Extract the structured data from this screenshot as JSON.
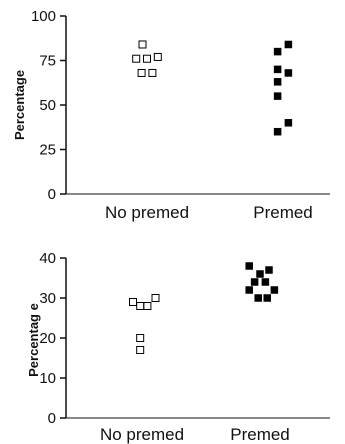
{
  "chart_data": [
    {
      "type": "scatter",
      "ylabel": "Percentage",
      "ylim": [
        0,
        100
      ],
      "yticks": [
        "0",
        "25",
        "50",
        "75",
        "100"
      ],
      "categories": [
        "No premed",
        "Premed"
      ],
      "series": [
        {
          "category": "No premed",
          "marker": "open-square",
          "points": [
            [
              -0.5,
              84
            ],
            [
              -1.2,
              76
            ],
            [
              0.0,
              76
            ],
            [
              1.2,
              77
            ],
            [
              -0.6,
              68
            ],
            [
              0.6,
              68
            ]
          ]
        },
        {
          "category": "Premed",
          "marker": "filled-square",
          "points": [
            [
              0.6,
              84
            ],
            [
              -0.6,
              80
            ],
            [
              -0.6,
              70
            ],
            [
              0.6,
              68
            ],
            [
              -0.6,
              63
            ],
            [
              -0.6,
              55
            ],
            [
              0.6,
              40
            ],
            [
              -0.6,
              35
            ]
          ]
        }
      ]
    },
    {
      "type": "scatter",
      "ylabel": "Percentag e",
      "ylim": [
        0,
        40
      ],
      "yticks": [
        "0",
        "10",
        "20",
        "30",
        "40"
      ],
      "categories": [
        "No premed",
        "Premed"
      ],
      "series": [
        {
          "category": "No premed",
          "marker": "open-square",
          "points": [
            [
              -1.0,
              29
            ],
            [
              -0.2,
              28
            ],
            [
              0.6,
              28
            ],
            [
              1.5,
              30
            ],
            [
              -0.2,
              20
            ],
            [
              -0.2,
              17
            ]
          ]
        },
        {
          "category": "Premed",
          "marker": "filled-square",
          "points": [
            [
              -1.2,
              38
            ],
            [
              0.0,
              36
            ],
            [
              1.0,
              37
            ],
            [
              -0.6,
              34
            ],
            [
              0.6,
              34
            ],
            [
              -1.2,
              32
            ],
            [
              1.6,
              32
            ],
            [
              -0.2,
              30
            ],
            [
              0.8,
              30
            ]
          ]
        }
      ]
    }
  ]
}
